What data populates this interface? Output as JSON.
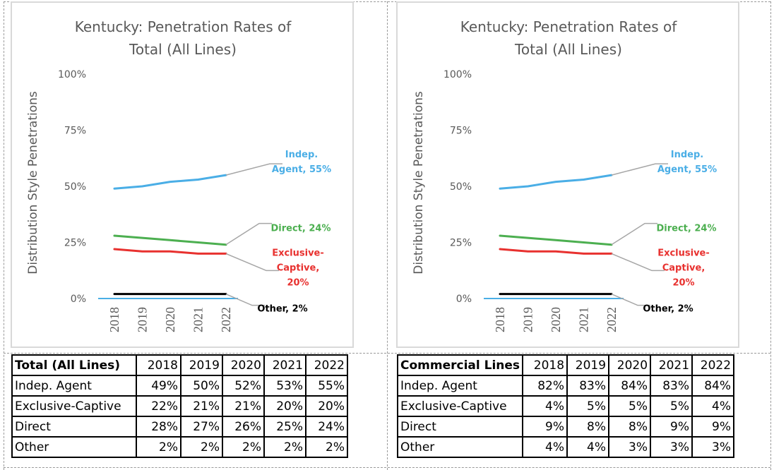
{
  "chart_data": [
    {
      "type": "line",
      "title": "Kentucky: Penetration Rates of Total (All Lines)",
      "title_lines": [
        "Kentucky: Penetration Rates of",
        "Total (All Lines)"
      ],
      "xlabel": "",
      "ylabel": "Distribution Style Penetrations",
      "ylim": [
        0,
        1
      ],
      "yticks": [
        "0%",
        "25%",
        "50%",
        "75%",
        "100%"
      ],
      "ytick_values": [
        0,
        0.25,
        0.5,
        0.75,
        1.0
      ],
      "x": [
        "2018",
        "2019",
        "2020",
        "2021",
        "2022"
      ],
      "grid": false,
      "legend": "none (data labels at line ends)",
      "series": [
        {
          "name": "Indep. Agent",
          "color": "#4aaee6",
          "values": [
            0.49,
            0.5,
            0.52,
            0.53,
            0.55
          ],
          "label_lines": [
            "Indep.",
            "Agent, 55%"
          ]
        },
        {
          "name": "Direct",
          "color": "#4caf50",
          "values": [
            0.28,
            0.27,
            0.26,
            0.25,
            0.24
          ],
          "label_lines": [
            "Direct, 24%"
          ]
        },
        {
          "name": "Exclusive-Captive",
          "color": "#e8312f",
          "values": [
            0.22,
            0.21,
            0.21,
            0.2,
            0.2
          ],
          "label_lines": [
            "Exclusive-",
            "Captive,",
            "20%"
          ]
        },
        {
          "name": "Other",
          "color": "#000000",
          "values": [
            0.02,
            0.02,
            0.02,
            0.02,
            0.02
          ],
          "label_lines": [
            "Other, 2%"
          ]
        }
      ]
    },
    {
      "type": "line",
      "title": "Kentucky: Penetration Rates of Total (All Lines)",
      "title_lines": [
        "Kentucky: Penetration Rates of",
        "Total (All Lines)"
      ],
      "xlabel": "",
      "ylabel": "Distribution Style Penetrations",
      "ylim": [
        0,
        1
      ],
      "yticks": [
        "0%",
        "25%",
        "50%",
        "75%",
        "100%"
      ],
      "ytick_values": [
        0,
        0.25,
        0.5,
        0.75,
        1.0
      ],
      "x": [
        "2018",
        "2019",
        "2020",
        "2021",
        "2022"
      ],
      "grid": false,
      "legend": "none (data labels at line ends)",
      "series": [
        {
          "name": "Indep. Agent",
          "color": "#4aaee6",
          "values": [
            0.49,
            0.5,
            0.52,
            0.53,
            0.55
          ],
          "label_lines": [
            "Indep.",
            "Agent, 55%"
          ]
        },
        {
          "name": "Direct",
          "color": "#4caf50",
          "values": [
            0.28,
            0.27,
            0.26,
            0.25,
            0.24
          ],
          "label_lines": [
            "Direct, 24%"
          ]
        },
        {
          "name": "Exclusive-Captive",
          "color": "#e8312f",
          "values": [
            0.22,
            0.21,
            0.21,
            0.2,
            0.2
          ],
          "label_lines": [
            "Exclusive-",
            "Captive,",
            "20%"
          ]
        },
        {
          "name": "Other",
          "color": "#000000",
          "values": [
            0.02,
            0.02,
            0.02,
            0.02,
            0.02
          ],
          "label_lines": [
            "Other, 2%"
          ]
        }
      ]
    }
  ],
  "tables": [
    {
      "header": [
        "Total (All Lines)",
        "2018",
        "2019",
        "2020",
        "2021",
        "2022"
      ],
      "rows": [
        [
          "Indep. Agent",
          "49%",
          "50%",
          "52%",
          "53%",
          "55%"
        ],
        [
          "Exclusive-Captive",
          "22%",
          "21%",
          "21%",
          "20%",
          "20%"
        ],
        [
          "Direct",
          "28%",
          "27%",
          "26%",
          "25%",
          "24%"
        ],
        [
          "Other",
          "2%",
          "2%",
          "2%",
          "2%",
          "2%"
        ]
      ]
    },
    {
      "header": [
        "Commercial Lines",
        "2018",
        "2019",
        "2020",
        "2021",
        "2022"
      ],
      "rows": [
        [
          "Indep. Agent",
          "82%",
          "83%",
          "84%",
          "83%",
          "84%"
        ],
        [
          "Exclusive-Captive",
          "4%",
          "5%",
          "5%",
          "5%",
          "4%"
        ],
        [
          "Direct",
          "9%",
          "8%",
          "8%",
          "9%",
          "9%"
        ],
        [
          "Other",
          "4%",
          "4%",
          "3%",
          "3%",
          "3%"
        ]
      ]
    }
  ],
  "colors": {
    "axis_text": "#595959",
    "frame": "#d9d9d9",
    "baseline": "#4aaee6",
    "leader": "#a6a6a6"
  }
}
